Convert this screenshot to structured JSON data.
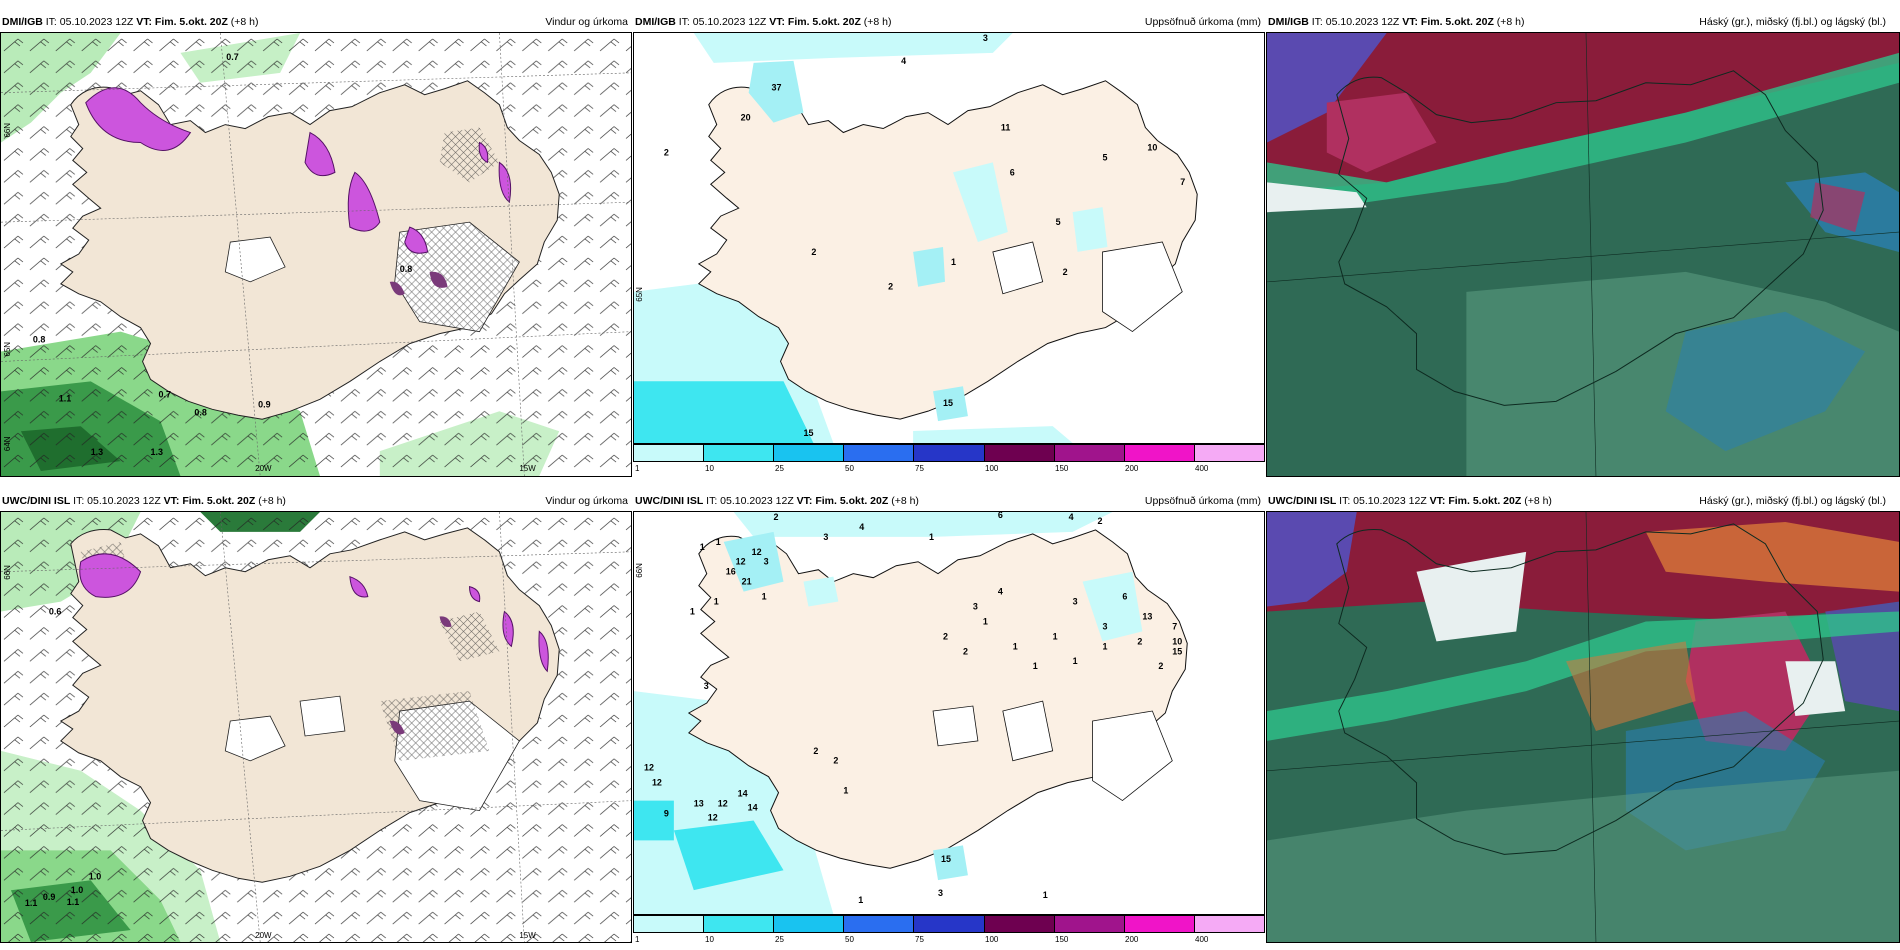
{
  "panels": [
    {
      "model": "DMI/IGB",
      "it": "IT: 05.10.2023 12Z",
      "vt": "VT: Fim. 5.okt. 20Z",
      "lead": "(+8 h)",
      "title": "Vindur og úrkoma"
    },
    {
      "model": "DMI/IGB",
      "it": "IT: 05.10.2023 12Z",
      "vt": "VT: Fim. 5.okt. 20Z",
      "lead": "(+8 h)",
      "title": "Uppsöfnuð úrkoma (mm)"
    },
    {
      "model": "DMI/IGB",
      "it": "IT: 05.10.2023 12Z",
      "vt": "VT: Fim. 5.okt. 20Z",
      "lead": "(+8 h)",
      "title": "Háský (gr.), miðský (fj.bl.) og lágský (bl.)"
    },
    {
      "model": "UWC/DINI ISL",
      "it": "IT: 05.10.2023 12Z",
      "vt": "VT: Fim. 5.okt. 20Z",
      "lead": "(+8 h)",
      "title": "Vindur og úrkoma"
    },
    {
      "model": "UWC/DINI ISL",
      "it": "IT: 05.10.2023 12Z",
      "vt": "VT: Fim. 5.okt. 20Z",
      "lead": "(+8 h)",
      "title": "Uppsöfnuð úrkoma (mm)"
    },
    {
      "model": "UWC/DINI ISL",
      "it": "IT: 05.10.2023 12Z",
      "vt": "VT: Fim. 5.okt. 20Z",
      "lead": "(+8 h)",
      "title": "Háský (gr.), miðský (fj.bl.) og lágský (bl.)"
    }
  ],
  "axis": {
    "lon_20": "20W",
    "lon_15": "15W",
    "lat_66": "66N",
    "lat_65": "65N",
    "lat_64": "64N"
  },
  "colorbar": {
    "ticks": [
      "1",
      "10",
      "25",
      "50",
      "75",
      "100",
      "150",
      "200",
      "400"
    ],
    "colors": [
      "#c8fafa",
      "#3ee6f0",
      "#19c3f0",
      "#2a6ef0",
      "#2636c8",
      "#6e0050",
      "#a0148c",
      "#f014c8",
      "#f5aaf5"
    ]
  },
  "wind_labels_top": [
    "0.7",
    "0.8",
    "1.1",
    "0.7",
    "0.8",
    "0.9",
    "1.3",
    "1.3",
    "0.8"
  ],
  "wind_labels_bottom": [
    "0.6",
    "1.0",
    "1.0",
    "0.9",
    "1.1",
    "1.1"
  ],
  "precip_labels_top": [
    "4",
    "3",
    "37",
    "20",
    "2",
    "11",
    "5",
    "10",
    "6",
    "7",
    "5",
    "2",
    "1",
    "2",
    "2",
    "15",
    "15"
  ],
  "precip_labels_bottom": [
    "2",
    "4",
    "6",
    "4",
    "2",
    "3",
    "1",
    "1",
    "1",
    "12",
    "16",
    "12",
    "21",
    "3",
    "1",
    "1",
    "1",
    "4",
    "3",
    "6",
    "3",
    "13",
    "7",
    "10",
    "15",
    "2",
    "1",
    "2",
    "2",
    "2",
    "1",
    "1",
    "1",
    "1",
    "1",
    "3",
    "3",
    "12",
    "12",
    "13",
    "12",
    "12",
    "14",
    "14",
    "9",
    "2",
    "2",
    "1",
    "3",
    "15",
    "1",
    "1"
  ]
}
